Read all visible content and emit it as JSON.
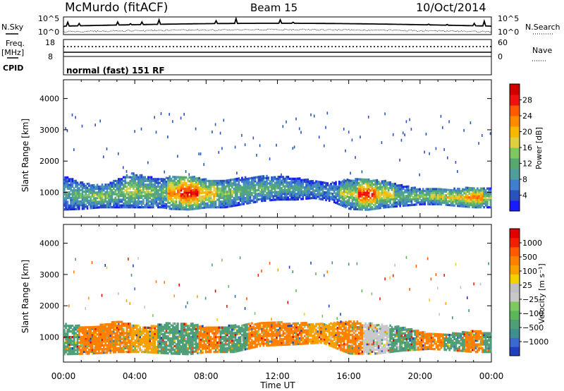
{
  "header": {
    "station": "McMurdo (fitACF)",
    "beam": "Beam 15",
    "date": "10/Oct/2014",
    "mode": "normal (fast) 151 RF"
  },
  "params_panel": {
    "nsky_label": "N.Sky",
    "nsearch_label": "N.Search",
    "freq_label": "Freq.",
    "freq_unit": "[MHz]",
    "nave_label": "Nave",
    "cpid_label": "CPID",
    "noise_top_tick": "10^5",
    "noise_bottom_tick": "10^0",
    "freq_top_tick": "18",
    "freq_bottom_tick": "8",
    "nave_top_tick": "60",
    "nave_bottom_tick": "0"
  },
  "chart_data": [
    {
      "type": "heatmap",
      "name": "power",
      "ylabel": "Slant Range [km]",
      "ylim": [
        200,
        4600
      ],
      "yticks": [
        "1000",
        "2000",
        "3000",
        "4000"
      ],
      "xlim": [
        0,
        24
      ],
      "colorbar": {
        "label": "Power [dB]",
        "range": [
          0,
          32
        ],
        "ticks": [
          "4",
          "8",
          "12",
          "16",
          "20",
          "24",
          "28"
        ],
        "colors": [
          "#1a1aff",
          "#2a52be",
          "#3f7fd0",
          "#4e9e9e",
          "#56a870",
          "#7ec860",
          "#e0d040",
          "#f8b800",
          "#ff8a00",
          "#ff5a00",
          "#f01010",
          "#d00000"
        ]
      },
      "rows": [
        {
          "t": 0.0,
          "lo": 430,
          "hi": 1500,
          "a": 10
        },
        {
          "t": 1.0,
          "lo": 450,
          "hi": 1300,
          "a": 12
        },
        {
          "t": 2.0,
          "lo": 500,
          "hi": 1200,
          "a": 14
        },
        {
          "t": 3.0,
          "lo": 500,
          "hi": 1400,
          "a": 12
        },
        {
          "t": 3.8,
          "lo": 500,
          "hi": 1600,
          "a": 16
        },
        {
          "t": 4.5,
          "lo": 500,
          "hi": 1500,
          "a": 14
        },
        {
          "t": 5.5,
          "lo": 500,
          "hi": 1400,
          "a": 12
        },
        {
          "t": 6.0,
          "lo": 450,
          "hi": 1500,
          "a": 22
        },
        {
          "t": 7.0,
          "lo": 430,
          "hi": 1500,
          "a": 28
        },
        {
          "t": 8.0,
          "lo": 500,
          "hi": 1400,
          "a": 20
        },
        {
          "t": 9.0,
          "lo": 500,
          "hi": 1400,
          "a": 14
        },
        {
          "t": 10.0,
          "lo": 600,
          "hi": 1450,
          "a": 12
        },
        {
          "t": 11.0,
          "lo": 700,
          "hi": 1500,
          "a": 12
        },
        {
          "t": 12.0,
          "lo": 750,
          "hi": 1500,
          "a": 11
        },
        {
          "t": 13.0,
          "lo": 750,
          "hi": 1450,
          "a": 10
        },
        {
          "t": 14.0,
          "lo": 800,
          "hi": 1350,
          "a": 9
        },
        {
          "t": 15.0,
          "lo": 700,
          "hi": 1300,
          "a": 8
        },
        {
          "t": 16.0,
          "lo": 450,
          "hi": 1400,
          "a": 16
        },
        {
          "t": 17.0,
          "lo": 420,
          "hi": 1400,
          "a": 26
        },
        {
          "t": 18.0,
          "lo": 500,
          "hi": 1350,
          "a": 18
        },
        {
          "t": 19.0,
          "lo": 550,
          "hi": 1200,
          "a": 12
        },
        {
          "t": 20.0,
          "lo": 600,
          "hi": 1100,
          "a": 14
        },
        {
          "t": 21.0,
          "lo": 600,
          "hi": 1100,
          "a": 16
        },
        {
          "t": 22.0,
          "lo": 550,
          "hi": 1100,
          "a": 18
        },
        {
          "t": 23.0,
          "lo": 500,
          "hi": 1150,
          "a": 22
        },
        {
          "t": 24.0,
          "lo": 500,
          "hi": 1100,
          "a": 14
        }
      ]
    },
    {
      "type": "heatmap",
      "name": "velocity",
      "ylabel": "Slant Range [km]",
      "ylim": [
        200,
        4600
      ],
      "yticks": [
        "1000",
        "2000",
        "3000",
        "4000"
      ],
      "xlim": [
        0,
        24
      ],
      "xlabel": "Time UT",
      "xticks": [
        "00:00",
        "04:00",
        "08:00",
        "12:00",
        "16:00",
        "20:00",
        "00:00"
      ],
      "colorbar": {
        "label": "Velocity [m s⁻¹]",
        "ticks": [
          "1000",
          "500",
          "100",
          "25",
          "−25",
          "−100",
          "−500",
          "−1000"
        ],
        "colors": [
          "#2040c0",
          "#3a6ad0",
          "#3c9090",
          "#4e9e78",
          "#5ab85a",
          "#7ec860",
          "#c8c8c8",
          "#c0c0c0",
          "#f4d000",
          "#f8a000",
          "#ff8000",
          "#ff5a00",
          "#f02000",
          "#e00000"
        ]
      },
      "rows": [
        {
          "t": 0.0,
          "lo": 430,
          "hi": 1400,
          "v": "#4e9e78"
        },
        {
          "t": 1.5,
          "lo": 450,
          "hi": 1300,
          "v": "#ff8000"
        },
        {
          "t": 3.0,
          "lo": 500,
          "hi": 1500,
          "v": "#ff8000"
        },
        {
          "t": 4.5,
          "lo": 500,
          "hi": 1300,
          "v": "#f8a000"
        },
        {
          "t": 6.0,
          "lo": 450,
          "hi": 1450,
          "v": "#4e9e78"
        },
        {
          "t": 7.0,
          "lo": 430,
          "hi": 1450,
          "v": "#4e9e78"
        },
        {
          "t": 8.0,
          "lo": 500,
          "hi": 1300,
          "v": "#ff8000"
        },
        {
          "t": 9.5,
          "lo": 500,
          "hi": 1350,
          "v": "#4e9e78"
        },
        {
          "t": 11.0,
          "lo": 700,
          "hi": 1450,
          "v": "#ff8000"
        },
        {
          "t": 13.0,
          "lo": 750,
          "hi": 1450,
          "v": "#ff8000"
        },
        {
          "t": 14.5,
          "lo": 800,
          "hi": 1400,
          "v": "#f8a000"
        },
        {
          "t": 16.0,
          "lo": 450,
          "hi": 1500,
          "v": "#ff8000"
        },
        {
          "t": 17.5,
          "lo": 450,
          "hi": 1400,
          "v": "#c8c8c8"
        },
        {
          "t": 19.0,
          "lo": 550,
          "hi": 1300,
          "v": "#4e9e78"
        },
        {
          "t": 20.5,
          "lo": 600,
          "hi": 1100,
          "v": "#ff8000"
        },
        {
          "t": 22.0,
          "lo": 550,
          "hi": 1100,
          "v": "#4e9e78"
        },
        {
          "t": 23.0,
          "lo": 500,
          "hi": 1200,
          "v": "#ff8000"
        },
        {
          "t": 24.0,
          "lo": 500,
          "hi": 1100,
          "v": "#4e9e78"
        }
      ]
    }
  ]
}
